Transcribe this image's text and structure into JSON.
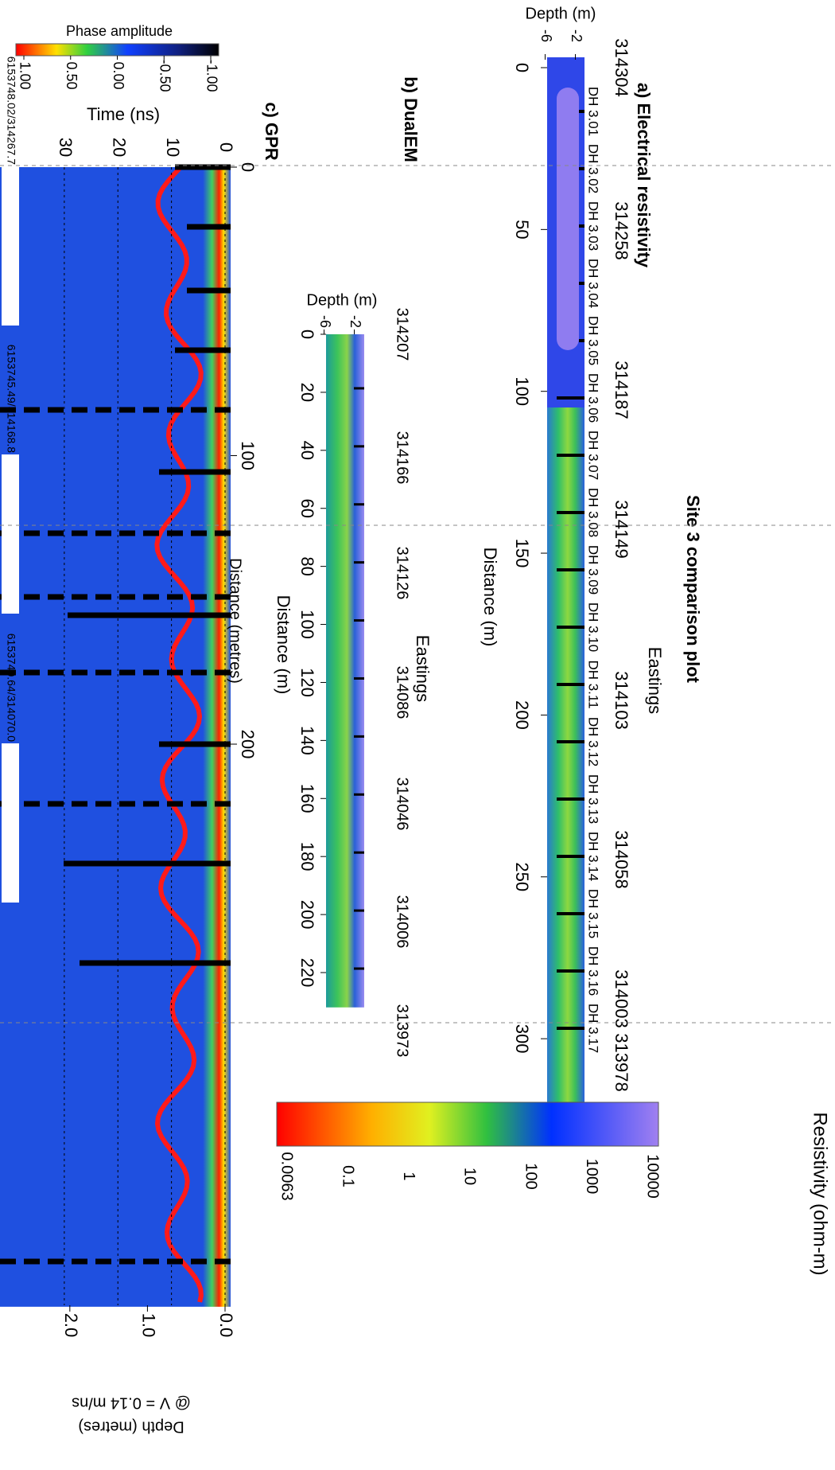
{
  "title": "Site 3 comparison plot",
  "panel_a": {
    "title": "a) Electrical resistivity",
    "x_label": "Distance (m)",
    "eastings_label": "Eastings",
    "depth_label": "Depth (m)",
    "depth_ticks": [
      -6,
      -2
    ],
    "xlim": [
      0,
      330
    ],
    "xticks": [
      0,
      50,
      100,
      150,
      200,
      250,
      300
    ],
    "eastings": [
      314304,
      314258,
      314187,
      314149,
      314103,
      314058,
      314003,
      313978
    ],
    "boreholes": [
      "DH 3.01",
      "DH 3.02",
      "DH 3.03",
      "DH 3.04",
      "DH 3.05",
      "DH 3.06",
      "DH 3.07",
      "DH 3.08",
      "DH 3.09",
      "DH 3.10",
      "DH 3.11",
      "DH 3.12",
      "DH 3.13",
      "DH 3.14",
      "DH 3.15",
      "DH 3.16",
      "DH 3.17"
    ]
  },
  "resistivity_colorbar": {
    "title": "Resistivity (ohm-m)",
    "ticks": [
      10000,
      1000,
      100,
      10,
      1,
      0.1,
      0.0063
    ]
  },
  "panel_b": {
    "title": "b) DualEM",
    "x_label": "Distance (m)",
    "eastings_label": "Eastings",
    "depth_label": "Depth (m)",
    "depth_ticks": [
      -6,
      -2
    ],
    "xlim": [
      0,
      232
    ],
    "xticks": [
      0,
      20,
      40,
      60,
      80,
      100,
      120,
      140,
      160,
      180,
      200,
      220
    ],
    "eastings": [
      314207,
      314166,
      314126,
      314086,
      314046,
      314006,
      313973
    ]
  },
  "panel_c": {
    "title": "c) GPR",
    "x_label": "Distance (metres)",
    "xlim": [
      0,
      395
    ],
    "xticks": [
      0,
      100,
      200
    ],
    "time_label": "Time (ns)",
    "tlim": [
      0,
      42
    ],
    "time_ticks": [
      0,
      10,
      20,
      30
    ],
    "depth_label": "Depth (metres)",
    "velocity_note": "@ V = 0.14 m/ns",
    "dlim": [
      0,
      2.9
    ],
    "depth_ticks": [
      {
        "value": 0,
        "label": "0.0"
      },
      {
        "value": 1,
        "label": "1.0"
      },
      {
        "value": 2,
        "label": "2.0"
      }
    ],
    "coordinates": [
      "6153748.02/314267.7",
      "6153745.49/314168.8",
      "6153740.64/314070.0"
    ]
  },
  "phase_colorbar": {
    "title": "Phase amplitude",
    "ticks": [
      {
        "value": 1,
        "label": "1.00"
      },
      {
        "value": 0.5,
        "label": "0.50"
      },
      {
        "value": 0,
        "label": "0.00"
      },
      {
        "value": -0.5,
        "label": "-0.50"
      },
      {
        "value": -1,
        "label": "-1.00"
      }
    ]
  }
}
